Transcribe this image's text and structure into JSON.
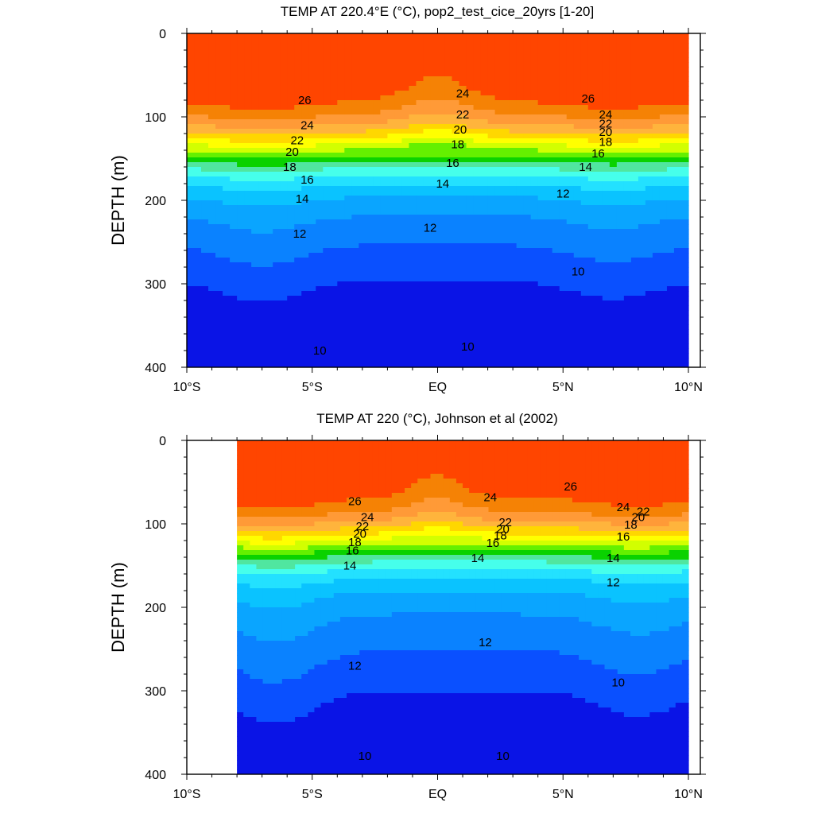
{
  "chart_data": [
    {
      "type": "contour",
      "title": "TEMP AT 220.4°E (°C), pop2_test_cice_20yrs [1-20]",
      "ylabel": "DEPTH (m)",
      "xlabel": "",
      "x_ticks": [
        "10°S",
        "5°S",
        "EQ",
        "5°N",
        "10°N"
      ],
      "x_tick_values": [
        -10,
        -5,
        0,
        5,
        10
      ],
      "y_ticks": [
        "0",
        "100",
        "200",
        "300",
        "400"
      ],
      "y_tick_values": [
        0,
        100,
        200,
        300,
        400
      ],
      "xlim": [
        -10,
        10
      ],
      "ylim": [
        0,
        400
      ],
      "y_reversed": true,
      "data_xlim": [
        -10,
        10
      ],
      "contour_interval": 1,
      "contour_labels": [
        {
          "text": "26",
          "lat": -5.3,
          "depth": 80
        },
        {
          "text": "24",
          "lat": -5.2,
          "depth": 110
        },
        {
          "text": "22",
          "lat": -5.6,
          "depth": 128
        },
        {
          "text": "20",
          "lat": -5.8,
          "depth": 142
        },
        {
          "text": "18",
          "lat": -5.9,
          "depth": 160
        },
        {
          "text": "16",
          "lat": -5.2,
          "depth": 175
        },
        {
          "text": "14",
          "lat": -5.4,
          "depth": 198
        },
        {
          "text": "12",
          "lat": -5.5,
          "depth": 240
        },
        {
          "text": "10",
          "lat": -4.7,
          "depth": 380
        },
        {
          "text": "24",
          "lat": 1.0,
          "depth": 72
        },
        {
          "text": "22",
          "lat": 1.0,
          "depth": 97
        },
        {
          "text": "20",
          "lat": 0.9,
          "depth": 115
        },
        {
          "text": "18",
          "lat": 0.8,
          "depth": 133
        },
        {
          "text": "16",
          "lat": 0.6,
          "depth": 155
        },
        {
          "text": "14",
          "lat": 0.2,
          "depth": 180
        },
        {
          "text": "12",
          "lat": -0.3,
          "depth": 233
        },
        {
          "text": "10",
          "lat": 1.2,
          "depth": 375
        },
        {
          "text": "26",
          "lat": 6.0,
          "depth": 78
        },
        {
          "text": "24",
          "lat": 6.7,
          "depth": 97
        },
        {
          "text": "22",
          "lat": 6.7,
          "depth": 108
        },
        {
          "text": "20",
          "lat": 6.7,
          "depth": 118
        },
        {
          "text": "18",
          "lat": 6.7,
          "depth": 130
        },
        {
          "text": "16",
          "lat": 6.4,
          "depth": 144
        },
        {
          "text": "14",
          "lat": 5.9,
          "depth": 160
        },
        {
          "text": "12",
          "lat": 5.0,
          "depth": 192
        },
        {
          "text": "10",
          "lat": 5.6,
          "depth": 285
        }
      ]
    },
    {
      "type": "contour",
      "title": "TEMP AT 220 (°C), Johnson et al (2002)",
      "ylabel": "DEPTH (m)",
      "xlabel": "",
      "x_ticks": [
        "10°S",
        "5°S",
        "EQ",
        "5°N",
        "10°N"
      ],
      "x_tick_values": [
        -10,
        -5,
        0,
        5,
        10
      ],
      "y_ticks": [
        "0",
        "100",
        "200",
        "300",
        "400"
      ],
      "y_tick_values": [
        0,
        100,
        200,
        300,
        400
      ],
      "xlim": [
        -10,
        10
      ],
      "ylim": [
        0,
        400
      ],
      "y_reversed": true,
      "data_xlim": [
        -8,
        10
      ],
      "contour_interval": 1,
      "contour_labels": [
        {
          "text": "26",
          "lat": -3.3,
          "depth": 73
        },
        {
          "text": "24",
          "lat": -2.8,
          "depth": 92
        },
        {
          "text": "22",
          "lat": -3.0,
          "depth": 103
        },
        {
          "text": "20",
          "lat": -3.1,
          "depth": 112
        },
        {
          "text": "18",
          "lat": -3.3,
          "depth": 122
        },
        {
          "text": "16",
          "lat": -3.4,
          "depth": 132
        },
        {
          "text": "14",
          "lat": -3.5,
          "depth": 150
        },
        {
          "text": "12",
          "lat": -3.3,
          "depth": 270
        },
        {
          "text": "10",
          "lat": -2.9,
          "depth": 378
        },
        {
          "text": "24",
          "lat": 2.1,
          "depth": 68
        },
        {
          "text": "22",
          "lat": 2.7,
          "depth": 98
        },
        {
          "text": "20",
          "lat": 2.6,
          "depth": 106
        },
        {
          "text": "18",
          "lat": 2.5,
          "depth": 114
        },
        {
          "text": "16",
          "lat": 2.2,
          "depth": 123
        },
        {
          "text": "14",
          "lat": 1.6,
          "depth": 141
        },
        {
          "text": "12",
          "lat": 1.9,
          "depth": 242
        },
        {
          "text": "10",
          "lat": 2.6,
          "depth": 378
        },
        {
          "text": "26",
          "lat": 5.3,
          "depth": 55
        },
        {
          "text": "24",
          "lat": 7.4,
          "depth": 80
        },
        {
          "text": "22",
          "lat": 8.2,
          "depth": 85
        },
        {
          "text": "20",
          "lat": 8.0,
          "depth": 92
        },
        {
          "text": "18",
          "lat": 7.7,
          "depth": 101
        },
        {
          "text": "16",
          "lat": 7.4,
          "depth": 115
        },
        {
          "text": "14",
          "lat": 7.0,
          "depth": 141
        },
        {
          "text": "12",
          "lat": 7.0,
          "depth": 170
        },
        {
          "text": "10",
          "lat": 7.2,
          "depth": 290
        }
      ]
    }
  ],
  "colors": {
    "levels": [
      "#0a14e6",
      "#0a50ff",
      "#0a82ff",
      "#0aa5ff",
      "#0ac3ff",
      "#23e1ff",
      "#46ffeb",
      "#50e6a0",
      "#0ad200",
      "#64f000",
      "#d2ff00",
      "#ffff00",
      "#ffd700",
      "#ffb43c",
      "#ff9a37",
      "#f58205",
      "#ff4500"
    ]
  }
}
